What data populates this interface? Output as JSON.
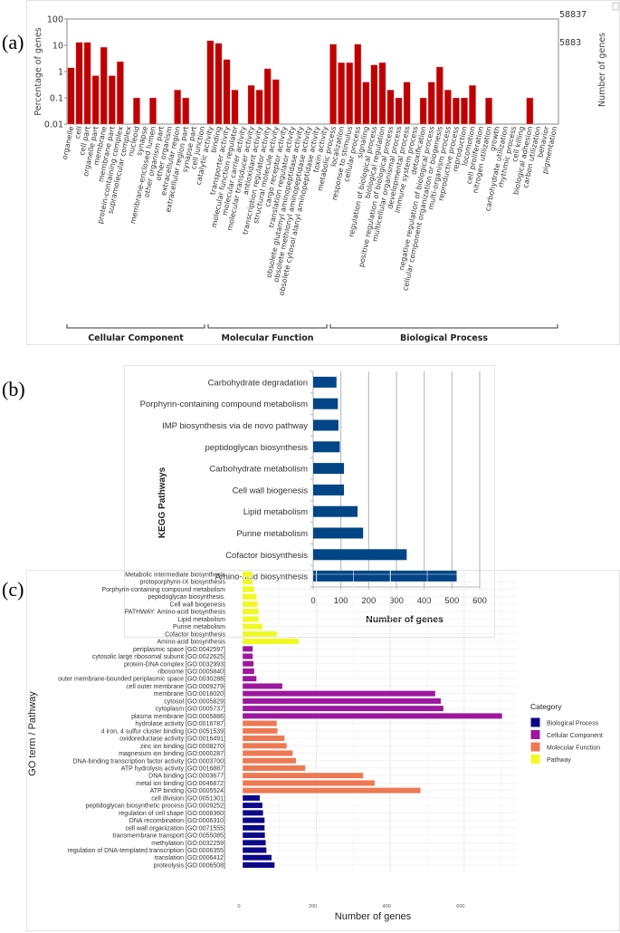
{
  "panel_labels": {
    "a": "(a)",
    "b": "(b)",
    "c": "(c)"
  },
  "colors": {
    "go_bar": "#c00000",
    "kegg_bar": "#004586",
    "Biological Process": "#0d0887",
    "Cellular Component": "#9c179e",
    "Molecular Function": "#ed7953",
    "Pathway": "#f0f921"
  },
  "chart_data": [
    {
      "type": "bar",
      "ylabel": "Percentage of genes",
      "ylabel_right": "Number of genes",
      "yscale": "log",
      "ylim": [
        0.01,
        100
      ],
      "yticks": [
        "100",
        "10",
        "1",
        "0.1",
        "0.01"
      ],
      "right_ticks": [
        "58837",
        "5883"
      ],
      "groups": [
        {
          "name": "Cellular Component",
          "categories": [
            "organelle",
            "cell",
            "cell part",
            "organelle part",
            "membrane",
            "membrane part",
            "protein-containing complex",
            "supramolecular complex",
            "nucleoid",
            "synapse",
            "membrane-enclosed lumen",
            "other organism part",
            "other organism",
            "extracellular region",
            "extracellular region part",
            "synapse part",
            "cell junction"
          ],
          "values": [
            1.4,
            13,
            13,
            0.7,
            8.5,
            0.7,
            2.4,
            null,
            0.1,
            null,
            0.1,
            null,
            null,
            0.2,
            0.1,
            null,
            null
          ]
        },
        {
          "name": "Molecular Function",
          "categories": [
            "catalytic activity",
            "binding",
            "transporter activity",
            "molecular function regulator",
            "molecular carrier activity",
            "molecular transducer activity",
            "antioxidant activity",
            "transcription regulator activity",
            "structural molecule activity",
            "cargo receptor activity",
            "translation regulator activity",
            "obsolete glutamyl aminopeptidase activity",
            "obsolete methionyl aminopeptidase activity",
            "obsolete cytosol alanyl aminopeptidase activity",
            "toxin activity"
          ],
          "values": [
            15,
            12,
            2.9,
            0.2,
            null,
            0.3,
            0.2,
            1.3,
            0.5,
            null,
            null,
            null,
            null,
            null,
            null
          ]
        },
        {
          "name": "Biological Process",
          "categories": [
            "metabolic process",
            "localization",
            "response to stimulus",
            "cellular process",
            "signaling",
            "regulation of biological process",
            "biological regulation",
            "positive regulation of biological process",
            "multicellular organismal process",
            "developmental process",
            "immune system process",
            "detoxification",
            "negative regulation of biological process",
            "cellular component organization or biogenesis",
            "multi-organism process",
            "reproductive process",
            "reproduction",
            "locomotion",
            "cell proliferation",
            "nitrogen utilization",
            "growth",
            "carbohydrate utilization",
            "rhythmic process",
            "cell killing",
            "biological adhesion",
            "carbon utilization",
            "behavior",
            "pigmentation"
          ],
          "values": [
            11,
            2.2,
            2.2,
            11,
            0.4,
            1.8,
            2.2,
            0.2,
            0.1,
            0.4,
            null,
            0.1,
            0.4,
            1.5,
            0.2,
            0.1,
            0.1,
            0.3,
            null,
            0.1,
            null,
            null,
            null,
            null,
            0.1,
            null,
            null,
            null
          ]
        }
      ]
    },
    {
      "type": "bar",
      "orientation": "horizontal",
      "ylabel": "KEGG Pathways",
      "xlabel": "Number of genes",
      "xlim": [
        0,
        600
      ],
      "xticks": [
        "0",
        "100",
        "200",
        "300",
        "400",
        "500",
        "600"
      ],
      "grid": true,
      "categories": [
        "Carbohydrate degradation",
        "Porphyrin-containing compound metabolism",
        "IMP biosynthesis via de novo pathway",
        "peptidoglycan biosynthesis",
        "Carbohydrate metabolism",
        "Cell wall biogenesis",
        "Lipid metabolism",
        "Purine metabolism",
        "Cofactor biosynthesis",
        "Amino-acid biosynthesis"
      ],
      "values": [
        84,
        89,
        91,
        96,
        111,
        111,
        160,
        180,
        337,
        517
      ]
    },
    {
      "type": "bar",
      "orientation": "horizontal",
      "ylabel": "GO term / Pathway",
      "xlabel": "Number of genes",
      "xlim": [
        0,
        740
      ],
      "xticks": [
        "0",
        "200",
        "400",
        "600"
      ],
      "grid": true,
      "legend": {
        "title": "Category",
        "position": "right",
        "entries": [
          "Biological Process",
          "Cellular Component",
          "Molecular Function",
          "Pathway"
        ]
      },
      "items": [
        {
          "label": "Metabolic intermediate biosynthesis",
          "value": 26,
          "category": "Pathway"
        },
        {
          "label": "protoporphyrin-IX biosynthesis",
          "value": 27,
          "category": "Pathway"
        },
        {
          "label": "Porphyrin-containing compound metabolism",
          "value": 32,
          "category": "Pathway"
        },
        {
          "label": "peptidoglycan biosynthesis.",
          "value": 38,
          "category": "Pathway"
        },
        {
          "label": "Cell wall biogenesis",
          "value": 41,
          "category": "Pathway"
        },
        {
          "label": "PATHWAY: Amino-acid biosynthesis",
          "value": 44,
          "category": "Pathway"
        },
        {
          "label": "Lipid metabolism",
          "value": 44,
          "category": "Pathway"
        },
        {
          "label": "Purine metabolism",
          "value": 54,
          "category": "Pathway"
        },
        {
          "label": "Cofactor biosynthesis",
          "value": 93,
          "category": "Pathway"
        },
        {
          "label": "Amino-acid biosynthesis",
          "value": 152,
          "category": "Pathway"
        },
        {
          "label": "periplasmic space [GO:0042597]",
          "value": 28,
          "category": "Cellular Component"
        },
        {
          "label": "cytosolic large ribosomal subunit [GO:0022625]",
          "value": 28,
          "category": "Cellular Component"
        },
        {
          "label": "protein-DNA complex [GO:0032993]",
          "value": 30,
          "category": "Cellular Component"
        },
        {
          "label": "ribosome [GO:0005840]",
          "value": 32,
          "category": "Cellular Component"
        },
        {
          "label": "outer membrane-bounded periplasmic space [GO:0030288]",
          "value": 38,
          "category": "Cellular Component"
        },
        {
          "label": "cell outer membrane [GO:0009279]",
          "value": 108,
          "category": "Cellular Component"
        },
        {
          "label": "membrane [GO:0016020]",
          "value": 522,
          "category": "Cellular Component"
        },
        {
          "label": "cytosol [GO:0005829]",
          "value": 537,
          "category": "Cellular Component"
        },
        {
          "label": "cytoplasm [GO:0005737]",
          "value": 544,
          "category": "Cellular Component"
        },
        {
          "label": "plasma membrane [GO:0005886]",
          "value": 703,
          "category": "Cellular Component"
        },
        {
          "label": "hydrolase activity [GO:0016787]",
          "value": 93,
          "category": "Molecular Function"
        },
        {
          "label": "4 iron, 4 sulfur cluster binding [GO:0051539]",
          "value": 95,
          "category": "Molecular Function"
        },
        {
          "label": "oxidoreductase activity [GO:0016491]",
          "value": 114,
          "category": "Molecular Function"
        },
        {
          "label": "zinc ion binding [GO:0008270]",
          "value": 120,
          "category": "Molecular Function"
        },
        {
          "label": "magnesium ion binding [GO:0000287]",
          "value": 136,
          "category": "Molecular Function"
        },
        {
          "label": "DNA-binding transcription factor activity [GO:0003700]",
          "value": 145,
          "category": "Molecular Function"
        },
        {
          "label": "ATP hydrolysis activity [GO:0016887]",
          "value": 170,
          "category": "Molecular Function"
        },
        {
          "label": "DNA binding [GO:0003677]",
          "value": 327,
          "category": "Molecular Function"
        },
        {
          "label": "metal ion binding [GO:0046872]",
          "value": 358,
          "category": "Molecular Function"
        },
        {
          "label": "ATP binding [GO:0005524]",
          "value": 482,
          "category": "Molecular Function"
        },
        {
          "label": "cell division [GO:0051301]",
          "value": 47,
          "category": "Biological Process"
        },
        {
          "label": "peptidoglycan biosynthetic process [GO:0009252]",
          "value": 54,
          "category": "Biological Process"
        },
        {
          "label": "regulation of cell shape [GO:0008360]",
          "value": 56,
          "category": "Biological Process"
        },
        {
          "label": "DNA recombination [GO:0006310]",
          "value": 60,
          "category": "Biological Process"
        },
        {
          "label": "cell wall organization [GO:0071555]",
          "value": 60,
          "category": "Biological Process"
        },
        {
          "label": "transmembrane transport [GO:0055085]",
          "value": 61,
          "category": "Biological Process"
        },
        {
          "label": "methylation [GO:0032259]",
          "value": 63,
          "category": "Biological Process"
        },
        {
          "label": "regulation of DNA-templated transcription [GO:0006355]",
          "value": 65,
          "category": "Biological Process"
        },
        {
          "label": "translation [GO:0006412]",
          "value": 79,
          "category": "Biological Process"
        },
        {
          "label": "proteolysis [GO:0006508]",
          "value": 87,
          "category": "Biological Process"
        }
      ]
    }
  ]
}
